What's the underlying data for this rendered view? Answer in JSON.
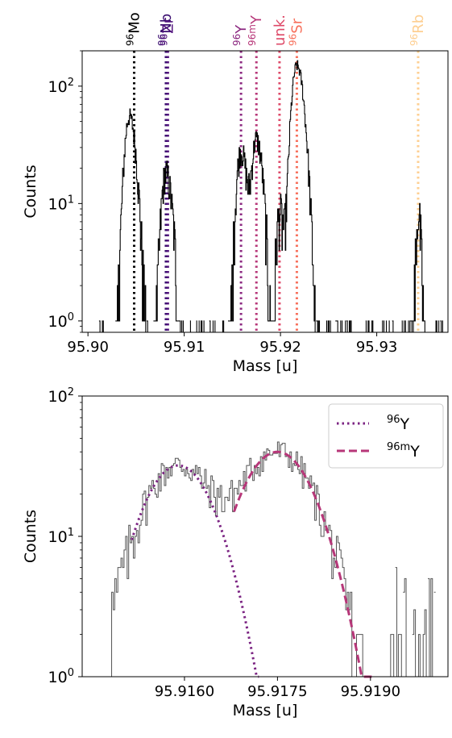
{
  "chart_data": [
    {
      "type": "line",
      "subtype": "histogram",
      "xlabel": "Mass [u]",
      "ylabel": "Counts",
      "yscale": "log",
      "xlim": [
        95.8994,
        95.9374
      ],
      "ylim": [
        0.8,
        200
      ],
      "xticks": [
        "95.90",
        "95.91",
        "95.92",
        "95.93"
      ],
      "xtick_values": [
        95.9,
        95.91,
        95.92,
        95.93
      ],
      "yticks": [
        "10^0",
        "10^1",
        "10^2"
      ],
      "ytick_values": [
        1,
        10,
        100
      ],
      "markers": [
        {
          "label_sup": "96",
          "label_main": "Mo",
          "x": 95.9048,
          "color": "#000000",
          "label_color": "#000000"
        },
        {
          "label_sup": "96",
          "label_main": "Nb",
          "x": 95.9081,
          "color": "#3b0f70",
          "label_color": "#3b0f70"
        },
        {
          "label_sup": "96",
          "label_main": "Zr",
          "x": 95.9083,
          "color": "#51127c",
          "label_color": "#51127c"
        },
        {
          "label_sup": "96",
          "label_main": "Y",
          "x": 95.9159,
          "color": "#8c2981",
          "label_color": "#8c2981"
        },
        {
          "label_sup": "96m",
          "label_main": "Y",
          "x": 95.9175,
          "color": "#b73779",
          "label_color": "#b73779"
        },
        {
          "label_sup": "",
          "label_main": "unk.",
          "x": 95.9199,
          "color": "#de4968",
          "label_color": "#de4968"
        },
        {
          "label_sup": "96",
          "label_main": "Sr",
          "x": 95.9217,
          "color": "#f7705c",
          "label_color": "#f7705c"
        },
        {
          "label_sup": "96",
          "label_main": "Rb",
          "x": 95.9343,
          "color": "#fecf92",
          "label_color": "#fecf92"
        }
      ],
      "peaks": [
        {
          "center": 95.9043,
          "amplitude": 55,
          "sigma": 0.00042
        },
        {
          "center": 95.9081,
          "amplitude": 18,
          "sigma": 0.0004
        },
        {
          "center": 95.9159,
          "amplitude": 28,
          "sigma": 0.0004
        },
        {
          "center": 95.9175,
          "amplitude": 35,
          "sigma": 0.0004
        },
        {
          "center": 95.9199,
          "amplitude": 8,
          "sigma": 0.0003
        },
        {
          "center": 95.9217,
          "amplitude": 150,
          "sigma": 0.00045
        },
        {
          "center": 95.9343,
          "amplitude": 8,
          "sigma": 0.0002
        }
      ],
      "background_counts": 1
    },
    {
      "type": "line",
      "subtype": "histogram-with-fits",
      "xlabel": "Mass [u]",
      "ylabel": "Counts",
      "yscale": "log",
      "xlim": [
        95.91435,
        95.92025
      ],
      "ylim": [
        1,
        100
      ],
      "xticks": [
        "95.9160",
        "95.9175",
        "95.9190"
      ],
      "xtick_values": [
        95.916,
        95.9175,
        95.919
      ],
      "yticks": [
        "10^0",
        "10^1",
        "10^2"
      ],
      "ytick_values": [
        1,
        10,
        100
      ],
      "series": [
        {
          "name": "96Y",
          "label_sup": "96",
          "label_main": "Y",
          "style": "dotted",
          "color": "#7b2382",
          "center": 95.9159,
          "amplitude": 32,
          "sigma": 0.00048,
          "x_range": [
            95.91515,
            95.9172
          ]
        },
        {
          "name": "96mY",
          "label_sup": "96m",
          "label_main": "Y",
          "style": "dashed",
          "color": "#b73779",
          "center": 95.9175,
          "amplitude": 40,
          "sigma": 0.0005,
          "x_range": [
            95.9168,
            95.91902
          ]
        }
      ],
      "legend": {
        "position": "top-right"
      }
    }
  ]
}
